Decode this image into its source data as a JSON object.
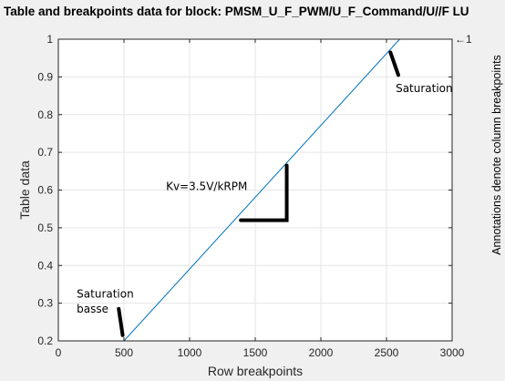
{
  "colors": {
    "figure_bg": "#f0f0f0",
    "axes_bg": "#ffffff",
    "axis": "#262626",
    "grid": "#e6e6e6",
    "line": "#0072bd",
    "annotation_ink": "#000000"
  },
  "chart_data": {
    "type": "line",
    "title": "Table and breakpoints data for block: PMSM_U_F_PWM/U_F_Command/U//F LU",
    "xlabel": "Row breakpoints",
    "ylabel": "Table data",
    "right_label": "Annotations denote column breakpoints",
    "series": [
      {
        "x": [
          0,
          500,
          2600,
          3000
        ],
        "y": [
          0.2,
          0.2,
          1.0,
          1.0
        ],
        "end_annotation": "←1"
      }
    ],
    "xlim": [
      0,
      3000
    ],
    "ylim": [
      0.2,
      1.0
    ],
    "xticks": [
      0,
      500,
      1000,
      1500,
      2000,
      2500,
      3000
    ],
    "xtick_labels": [
      "0",
      "500",
      "1000",
      "1500",
      "2000",
      "2500",
      "3000"
    ],
    "yticks": [
      0.2,
      0.3,
      0.4,
      0.5,
      0.6,
      0.7,
      0.8,
      0.9,
      1.0
    ],
    "ytick_labels": [
      "0.2",
      "0.3",
      "0.4",
      "0.5",
      "0.6",
      "0.7",
      "0.8",
      "0.9",
      "1"
    ],
    "grid": true,
    "annotations": [
      {
        "text": "Saturation",
        "x": 2570,
        "y": 0.86
      },
      {
        "text": "Saturation",
        "x": 140,
        "y": 0.315
      },
      {
        "text": "basse",
        "x": 140,
        "y": 0.275
      },
      {
        "text": "Kv=3.5V/kRPM",
        "x": 820,
        "y": 0.6
      }
    ],
    "drawn_marks": [
      {
        "kind": "stroke",
        "points": [
          [
            2530,
            0.965
          ],
          [
            2590,
            0.905
          ]
        ]
      },
      {
        "kind": "stroke",
        "points": [
          [
            460,
            0.285
          ],
          [
            490,
            0.215
          ]
        ]
      },
      {
        "kind": "stroke",
        "points": [
          [
            1740,
            0.665
          ],
          [
            1740,
            0.52
          ],
          [
            1390,
            0.52
          ]
        ]
      }
    ]
  }
}
